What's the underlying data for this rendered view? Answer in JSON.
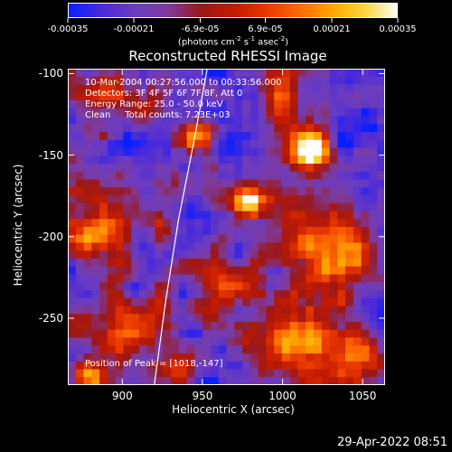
{
  "colorbar": {
    "tick_labels": [
      "-0.00035",
      "-0.00021",
      "-6.9e-05",
      "6.9e-05",
      "0.00021",
      "0.00035"
    ],
    "tick_values": [
      -0.00035,
      -0.00021,
      -6.9e-05,
      6.9e-05,
      0.00021,
      0.00035
    ],
    "range": [
      -0.00035,
      0.00035
    ],
    "units_prefix": "(photons cm",
    "units_exp1": "-2",
    "units_mid1": " s",
    "units_exp2": "-1",
    "units_mid2": " asec",
    "units_exp3": "-2",
    "units_suffix": ")"
  },
  "chart_data": {
    "type": "heatmap",
    "title": "Reconstructed RHESSI Image",
    "xlabel": "Heliocentric X (arcsec)",
    "ylabel": "Heliocentric Y (arcsec)",
    "xlim": [
      866,
      1064
    ],
    "ylim": [
      -291,
      -97
    ],
    "x_ticks": [
      900,
      950,
      1000,
      1050
    ],
    "y_ticks": [
      -100,
      -150,
      -200,
      -250
    ],
    "peak": [
      1018,
      -147
    ],
    "limb_curve": [
      [
        953,
        -97
      ],
      [
        945,
        -140
      ],
      [
        935,
        -190
      ],
      [
        927,
        -240
      ],
      [
        920,
        -291
      ]
    ],
    "colormap": [
      "#0a1fff",
      "#4b2ad8",
      "#6a3cc0",
      "#7e3ba0",
      "#9a1818",
      "#c21a00",
      "#e83800",
      "#ff6a00",
      "#ffa800",
      "#ffd640",
      "#ffffff"
    ]
  },
  "annotations": {
    "time_range": "10-Mar-2004 00:27:56.000 to 00:33:56.000",
    "detectors": "Detectors: 3F 4F 5F 6F 7F 8F, Att 0",
    "energy": "Energy Range: 25.0 - 50.0 keV",
    "clean": "Clean     Total counts: 7.23E+03",
    "peak_position": "Position of Peak = [1018,-147]"
  },
  "footer": {
    "date": "29-Apr-2022 08:51"
  }
}
